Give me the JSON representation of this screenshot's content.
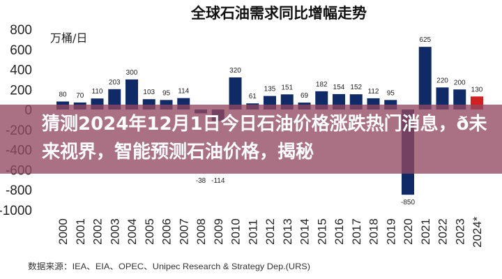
{
  "banner": {
    "headline": "猜测2024年12月1日今日石油价格涨跌热门消息，ð未来视界，智能预测石油价格，揭秘"
  },
  "chart_data": {
    "type": "bar",
    "title": "全球石油需求同比增幅走势",
    "unit_label": "万桶/日",
    "categories": [
      "2000",
      "2001",
      "2002",
      "2003",
      "2004",
      "2005",
      "2006",
      "2007",
      "2008",
      "2009",
      "2010",
      "2011",
      "2012",
      "2013",
      "2014",
      "2015",
      "2016",
      "2017",
      "2018",
      "2019",
      "2020",
      "2021",
      "2022",
      "2023",
      "2024*"
    ],
    "values": [
      80,
      70,
      110,
      203,
      300,
      103,
      95,
      114,
      -38,
      -114,
      320,
      61,
      135,
      151,
      69,
      182,
      154,
      152,
      112,
      95,
      -850,
      625,
      220,
      200,
      130
    ],
    "ylim": [
      -1000,
      800
    ],
    "yticks": [
      "800",
      "600",
      "400",
      "200",
      "0",
      "-200",
      "-400",
      "-600",
      "-800",
      "-1000"
    ],
    "grid": false,
    "colors": {
      "bar": "#0f2a66",
      "highlight": "#d21f1f"
    },
    "highlight_category": "2024*",
    "source": "数据来源：IEA、EIA、OPEC、Unipec Research & Strategy Dep.(URS)"
  }
}
